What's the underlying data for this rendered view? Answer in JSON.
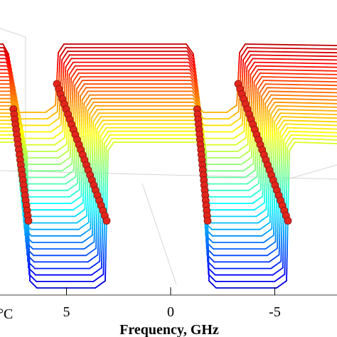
{
  "chart_data": {
    "type": "line",
    "view": "3d-waterfall",
    "xlabel": "Frequency, GHz",
    "zlabel_fragment": "°C",
    "x_ticks": [
      {
        "value": 5,
        "label": "5"
      },
      {
        "value": 0,
        "label": "0"
      },
      {
        "value": -5,
        "label": "-5"
      }
    ],
    "x_axis_reversed": true,
    "trace_count": 28,
    "colormap": "jet",
    "marker_color": "#e3261c",
    "grid": true,
    "legend": "none"
  }
}
